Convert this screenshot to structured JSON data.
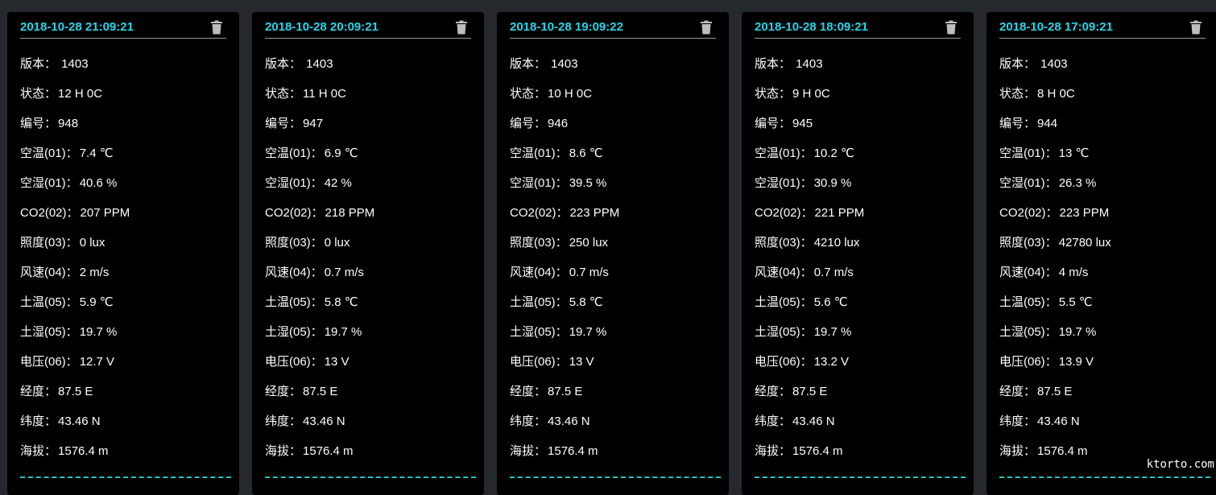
{
  "colors": {
    "background": "#25282c",
    "card": "#000000",
    "timestamp": "#2ad4e8",
    "accent": "#1fc7c0"
  },
  "cards": [
    {
      "timestamp": "2018-10-28 21:09:21",
      "delete_icon": "trash-icon",
      "fields": [
        {
          "label": "版本：",
          "value": " 1403"
        },
        {
          "label": "状态：",
          "value": "12 H 0C"
        },
        {
          "label": "编号：",
          "value": "948"
        },
        {
          "label": "空温(01)：",
          "value": "7.4 ℃"
        },
        {
          "label": "空湿(01)：",
          "value": "40.6 %"
        },
        {
          "label": "CO2(02)：",
          "value": "207 PPM"
        },
        {
          "label": "照度(03)：",
          "value": "0 lux"
        },
        {
          "label": "风速(04)：",
          "value": "2 m/s"
        },
        {
          "label": "土温(05)：",
          "value": "5.9 ℃"
        },
        {
          "label": "土湿(05)：",
          "value": "19.7 %"
        },
        {
          "label": "电压(06)：",
          "value": "12.7 V"
        },
        {
          "label": "经度：",
          "value": "87.5 E"
        },
        {
          "label": "纬度：",
          "value": "43.46 N"
        },
        {
          "label": "海拔：",
          "value": "1576.4 m"
        }
      ]
    },
    {
      "timestamp": "2018-10-28 20:09:21",
      "delete_icon": "trash-icon",
      "fields": [
        {
          "label": "版本：",
          "value": " 1403"
        },
        {
          "label": "状态：",
          "value": "11 H 0C"
        },
        {
          "label": "编号：",
          "value": "947"
        },
        {
          "label": "空温(01)：",
          "value": "6.9 ℃"
        },
        {
          "label": "空湿(01)：",
          "value": "42 %"
        },
        {
          "label": "CO2(02)：",
          "value": "218 PPM"
        },
        {
          "label": "照度(03)：",
          "value": "0 lux"
        },
        {
          "label": "风速(04)：",
          "value": "0.7 m/s"
        },
        {
          "label": "土温(05)：",
          "value": "5.8 ℃"
        },
        {
          "label": "土湿(05)：",
          "value": "19.7 %"
        },
        {
          "label": "电压(06)：",
          "value": "13 V"
        },
        {
          "label": "经度：",
          "value": "87.5 E"
        },
        {
          "label": "纬度：",
          "value": "43.46 N"
        },
        {
          "label": "海拔：",
          "value": "1576.4 m"
        }
      ]
    },
    {
      "timestamp": "2018-10-28 19:09:22",
      "delete_icon": "trash-icon",
      "fields": [
        {
          "label": "版本：",
          "value": " 1403"
        },
        {
          "label": "状态：",
          "value": "10 H 0C"
        },
        {
          "label": "编号：",
          "value": "946"
        },
        {
          "label": "空温(01)：",
          "value": "8.6 ℃"
        },
        {
          "label": "空湿(01)：",
          "value": "39.5 %"
        },
        {
          "label": "CO2(02)：",
          "value": "223 PPM"
        },
        {
          "label": "照度(03)：",
          "value": "250 lux"
        },
        {
          "label": "风速(04)：",
          "value": "0.7 m/s"
        },
        {
          "label": "土温(05)：",
          "value": "5.8 ℃"
        },
        {
          "label": "土湿(05)：",
          "value": "19.7 %"
        },
        {
          "label": "电压(06)：",
          "value": "13 V"
        },
        {
          "label": "经度：",
          "value": "87.5 E"
        },
        {
          "label": "纬度：",
          "value": "43.46 N"
        },
        {
          "label": "海拔：",
          "value": "1576.4 m"
        }
      ]
    },
    {
      "timestamp": "2018-10-28 18:09:21",
      "delete_icon": "trash-icon",
      "fields": [
        {
          "label": "版本：",
          "value": " 1403"
        },
        {
          "label": "状态：",
          "value": "9 H 0C"
        },
        {
          "label": "编号：",
          "value": "945"
        },
        {
          "label": "空温(01)：",
          "value": "10.2 ℃"
        },
        {
          "label": "空湿(01)：",
          "value": "30.9 %"
        },
        {
          "label": "CO2(02)：",
          "value": "221 PPM"
        },
        {
          "label": "照度(03)：",
          "value": "4210 lux"
        },
        {
          "label": "风速(04)：",
          "value": "0.7 m/s"
        },
        {
          "label": "土温(05)：",
          "value": "5.6 ℃"
        },
        {
          "label": "土湿(05)：",
          "value": "19.7 %"
        },
        {
          "label": "电压(06)：",
          "value": "13.2 V"
        },
        {
          "label": "经度：",
          "value": "87.5 E"
        },
        {
          "label": "纬度：",
          "value": "43.46 N"
        },
        {
          "label": "海拔：",
          "value": "1576.4 m"
        }
      ]
    },
    {
      "timestamp": "2018-10-28 17:09:21",
      "delete_icon": "trash-icon",
      "fields": [
        {
          "label": "版本：",
          "value": " 1403"
        },
        {
          "label": "状态：",
          "value": "8 H 0C"
        },
        {
          "label": "编号：",
          "value": "944"
        },
        {
          "label": "空温(01)：",
          "value": "13 ℃"
        },
        {
          "label": "空湿(01)：",
          "value": "26.3 %"
        },
        {
          "label": "CO2(02)：",
          "value": "223 PPM"
        },
        {
          "label": "照度(03)：",
          "value": "42780 lux"
        },
        {
          "label": "风速(04)：",
          "value": "4 m/s"
        },
        {
          "label": "土温(05)：",
          "value": "5.5 ℃"
        },
        {
          "label": "土湿(05)：",
          "value": "19.7 %"
        },
        {
          "label": "电压(06)：",
          "value": "13.9 V"
        },
        {
          "label": "经度：",
          "value": "87.5 E"
        },
        {
          "label": "纬度：",
          "value": "43.46 N"
        },
        {
          "label": "海拔：",
          "value": "1576.4 m"
        }
      ]
    }
  ],
  "watermark": "ktorto.com"
}
